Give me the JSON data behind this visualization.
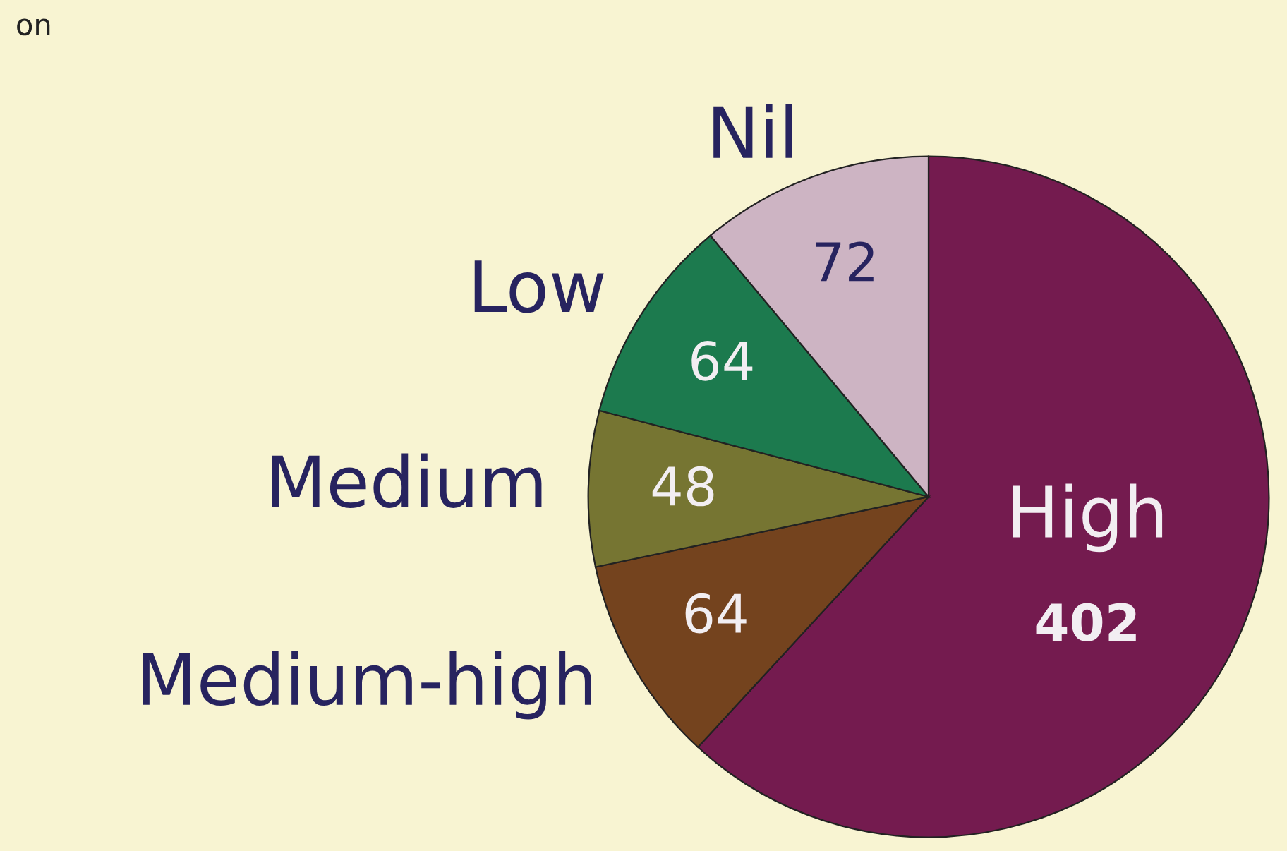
{
  "chart_data": {
    "type": "pie",
    "categories": [
      "High",
      "Medium-high",
      "Medium",
      "Low",
      "Nil"
    ],
    "values": [
      402,
      64,
      48,
      64,
      72
    ],
    "colors": [
      "#741b4f",
      "#74431e",
      "#767532",
      "#1c7a4e",
      "#cdb4c3"
    ],
    "data_labels": true,
    "legend": false,
    "annotations": [
      "on"
    ]
  }
}
